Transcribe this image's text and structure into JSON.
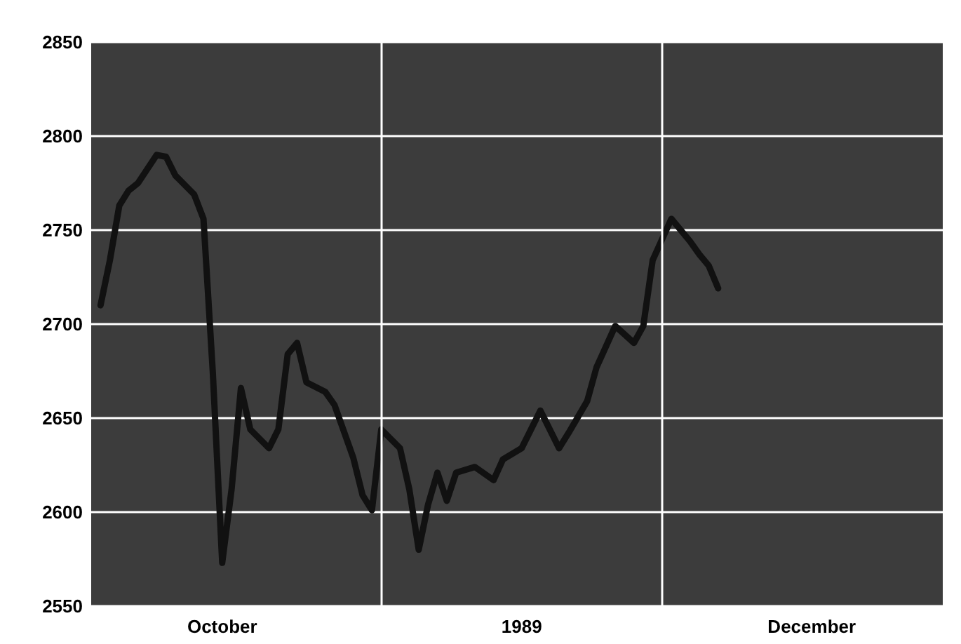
{
  "chart_data": {
    "type": "line",
    "x": [
      "1989-10-02",
      "1989-10-03",
      "1989-10-04",
      "1989-10-05",
      "1989-10-06",
      "1989-10-08",
      "1989-10-09",
      "1989-10-10",
      "1989-10-12",
      "1989-10-13",
      "1989-10-14",
      "1989-10-15",
      "1989-10-16",
      "1989-10-17",
      "1989-10-18",
      "1989-10-20",
      "1989-10-21",
      "1989-10-22",
      "1989-10-23",
      "1989-10-24",
      "1989-10-26",
      "1989-10-27",
      "1989-10-29",
      "1989-10-30",
      "1989-10-31",
      "1989-11-01",
      "1989-11-03",
      "1989-11-04",
      "1989-11-05",
      "1989-11-06",
      "1989-11-07",
      "1989-11-08",
      "1989-11-09",
      "1989-11-11",
      "1989-11-13",
      "1989-11-14",
      "1989-11-16",
      "1989-11-18",
      "1989-11-20",
      "1989-11-21",
      "1989-11-23",
      "1989-11-24",
      "1989-11-26",
      "1989-11-28",
      "1989-11-29",
      "1989-11-30",
      "1989-12-02",
      "1989-12-04",
      "1989-12-05",
      "1989-12-06",
      "1989-12-07"
    ],
    "series": [
      {
        "color": "#111111",
        "values": [
          2710,
          2734,
          2763,
          2771,
          2775,
          2790,
          2789,
          2779,
          2769,
          2756,
          2674,
          2573,
          2612,
          2666,
          2644,
          2634,
          2644,
          2684,
          2690,
          2669,
          2664,
          2657,
          2629,
          2609,
          2601,
          2644,
          2634,
          2612,
          2580,
          2604,
          2621,
          2606,
          2621,
          2624,
          2617,
          2628,
          2634,
          2654,
          2634,
          2642,
          2659,
          2677,
          2699,
          2690,
          2699,
          2734,
          2756,
          2744,
          2737,
          2731,
          2719
        ]
      }
    ],
    "xlim": [
      "1989-10-01",
      "1989-12-31"
    ],
    "xticks": [
      {
        "value": "1989-10-15",
        "label": "October"
      },
      {
        "value": "1989-11-16",
        "label": "1989"
      },
      {
        "value": "1989-12-17",
        "label": "December"
      }
    ],
    "ylim": [
      2550,
      2850
    ],
    "yticks": [
      2550,
      2600,
      2650,
      2700,
      2750,
      2800,
      2850
    ],
    "ref_lines": [
      {
        "axis": "x",
        "value": "1989-11-01",
        "color": "#ffffff"
      },
      {
        "axis": "x",
        "value": "1989-12-01",
        "color": "#ffffff"
      }
    ],
    "grid": "y",
    "marker": "none",
    "line_style": "solid"
  }
}
